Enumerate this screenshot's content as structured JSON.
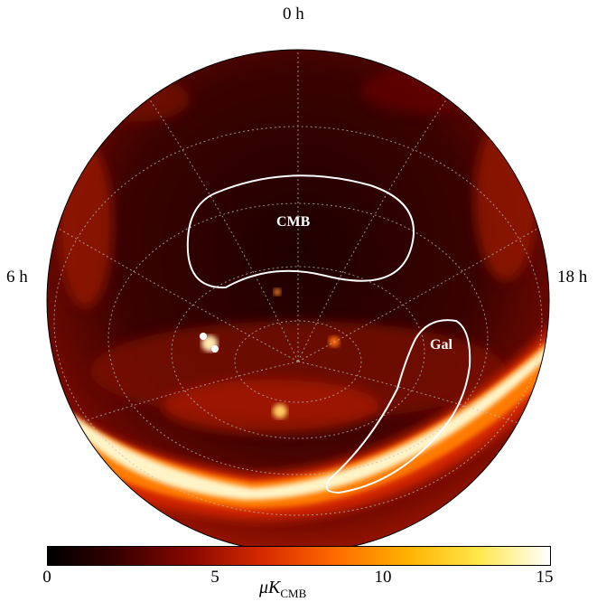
{
  "map": {
    "ra_labels": {
      "top": "0 h",
      "left": "6 h",
      "right": "18 h"
    },
    "regions": {
      "cmb": "CMB",
      "galactic": "Gal"
    },
    "colormap": [
      "#000000",
      "#3a0000",
      "#8a0800",
      "#d72a00",
      "#ff6a00",
      "#ffb000",
      "#ffe74a",
      "#ffffff"
    ]
  },
  "colorbar": {
    "ticks": [
      "0",
      "5",
      "10",
      "15"
    ],
    "range": [
      0,
      15
    ],
    "unit_prefix": "μK",
    "unit_sub": "CMB"
  }
}
